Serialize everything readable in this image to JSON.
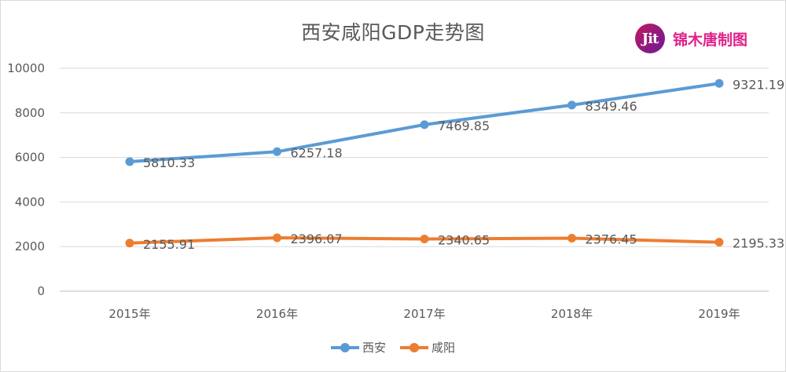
{
  "chart_data": {
    "type": "line",
    "title": "西安咸阳GDP走势图",
    "categories": [
      "2015年",
      "2016年",
      "2017年",
      "2018年",
      "2019年"
    ],
    "series": [
      {
        "name": "西安",
        "color": "#5b9bd5",
        "values": [
          5810.33,
          6257.18,
          7469.85,
          8349.46,
          9321.19
        ],
        "labels": [
          "5810.33",
          "6257.18",
          "7469.85",
          "8349.46",
          "9321.19"
        ]
      },
      {
        "name": "咸阳",
        "color": "#ed7d31",
        "values": [
          2155.91,
          2396.07,
          2340.65,
          2376.45,
          2195.33
        ],
        "labels": [
          "2155.91",
          "2396.07",
          "2340.65",
          "2376.45",
          "2195.33"
        ]
      }
    ],
    "ylim": [
      0,
      10000
    ],
    "yticks": [
      "0",
      "2000",
      "4000",
      "6000",
      "8000",
      "10000"
    ],
    "grid": true,
    "legend_position": "bottom"
  },
  "logo": {
    "mark": "Jit",
    "text": "锦木唐制图"
  }
}
